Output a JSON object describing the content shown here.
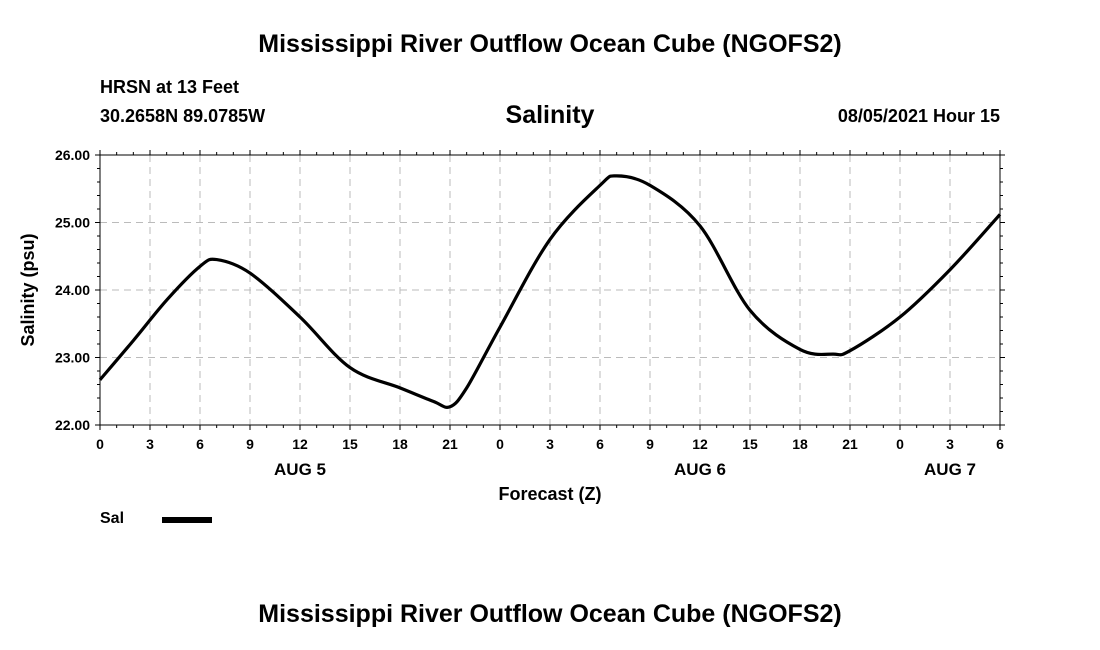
{
  "header": {
    "title": "Mississippi River Outflow Ocean Cube (NGOFS2)",
    "station": "HRSN at 13 Feet",
    "coords": "30.2658N  89.0785W",
    "datetime": "08/05/2021 Hour 15"
  },
  "footer": {
    "title": "Mississippi River Outflow Ocean Cube (NGOFS2)"
  },
  "legend": {
    "position": "bottom-left",
    "items": [
      {
        "label": "Sal",
        "color": "#000000"
      }
    ]
  },
  "chart_data": {
    "type": "line",
    "title": "Salinity",
    "xlabel": "Forecast (Z)",
    "ylabel": "Salinity (psu)",
    "xlim": [
      "08/05/2021 00Z",
      "08/07/2021 06Z"
    ],
    "ylim": [
      22.0,
      26.0
    ],
    "yticks": [
      "22.00",
      "23.00",
      "24.00",
      "25.00",
      "26.00"
    ],
    "xticks": [
      "0",
      "3",
      "6",
      "9",
      "12",
      "15",
      "18",
      "21",
      "0",
      "3",
      "6",
      "9",
      "12",
      "15",
      "18",
      "21",
      "0",
      "3",
      "6"
    ],
    "day_labels": [
      {
        "label": "AUG 5",
        "at": "08/05/2021 12Z"
      },
      {
        "label": "AUG 6",
        "at": "08/06/2021 12Z"
      },
      {
        "label": "AUG 7",
        "at": "08/07/2021 03Z"
      }
    ],
    "grid": true,
    "series": [
      {
        "name": "Sal",
        "color": "#000000",
        "x": [
          "08/05/2021 00Z",
          "08/05/2021 02Z",
          "08/05/2021 04Z",
          "08/05/2021 06Z",
          "08/05/2021 07Z",
          "08/05/2021 09Z",
          "08/05/2021 12Z",
          "08/05/2021 15Z",
          "08/05/2021 18Z",
          "08/05/2021 20Z",
          "08/05/2021 21Z",
          "08/05/2021 22Z",
          "08/06/2021 00Z",
          "08/06/2021 03Z",
          "08/06/2021 06Z",
          "08/06/2021 07Z",
          "08/06/2021 09Z",
          "08/06/2021 12Z",
          "08/06/2021 15Z",
          "08/06/2021 18Z",
          "08/06/2021 20Z",
          "08/06/2021 21Z",
          "08/07/2021 00Z",
          "08/07/2021 03Z",
          "08/07/2021 06Z"
        ],
        "values": [
          22.67,
          23.25,
          23.85,
          24.35,
          24.45,
          24.25,
          23.6,
          22.85,
          22.55,
          22.35,
          22.27,
          22.55,
          23.45,
          24.75,
          25.55,
          25.69,
          25.55,
          24.95,
          23.7,
          23.12,
          23.05,
          23.1,
          23.6,
          24.3,
          25.12
        ]
      }
    ]
  }
}
